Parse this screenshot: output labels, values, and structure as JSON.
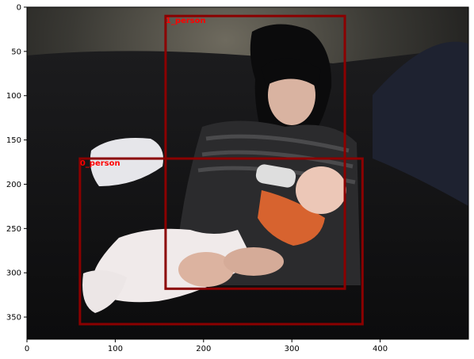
{
  "figure": {
    "image_description_free": true,
    "xlim": [
      0,
      500
    ],
    "ylim": [
      375,
      0
    ],
    "x_ticks": [
      {
        "value": 0,
        "label": "0"
      },
      {
        "value": 100,
        "label": "100"
      },
      {
        "value": 200,
        "label": "200"
      },
      {
        "value": 300,
        "label": "300"
      },
      {
        "value": 400,
        "label": "400"
      }
    ],
    "y_ticks": [
      {
        "value": 0,
        "label": "0"
      },
      {
        "value": 50,
        "label": "50"
      },
      {
        "value": 100,
        "label": "100"
      },
      {
        "value": 150,
        "label": "150"
      },
      {
        "value": 200,
        "label": "200"
      },
      {
        "value": 250,
        "label": "250"
      },
      {
        "value": 300,
        "label": "300"
      },
      {
        "value": 350,
        "label": "350"
      }
    ],
    "detections": [
      {
        "label": "1_person",
        "x0": 157,
        "y0": 10,
        "x1": 360,
        "y1": 318
      },
      {
        "label": "0_person",
        "x0": 60,
        "y0": 171,
        "x1": 380,
        "y1": 358
      }
    ],
    "box_color": "#8b0000",
    "label_color": "#ff0000"
  }
}
